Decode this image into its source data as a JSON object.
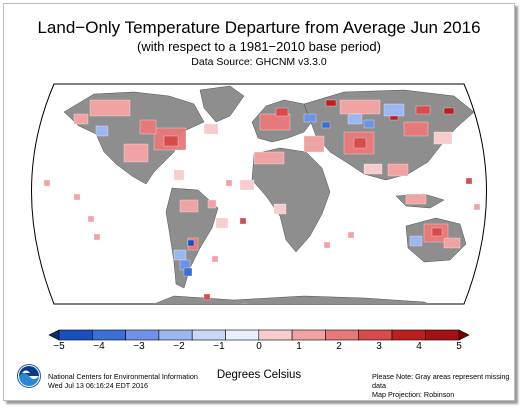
{
  "header": {
    "title": "Land−Only Temperature Departure from Average Jun 2016",
    "subtitle": "(with respect to a 1981−2010 base period)",
    "source": "Data Source: GHCNM v3.3.0"
  },
  "colors": {
    "land_missing": "#8e8e8e",
    "ocean": "#ffffff",
    "scale": [
      "#08306b",
      "#1a4fbf",
      "#3a6fd6",
      "#6e93e6",
      "#9db6f0",
      "#c9d7f6",
      "#f6cccc",
      "#efa3a3",
      "#e57a7a",
      "#d84b4b",
      "#bf1e1e",
      "#7a0000"
    ]
  },
  "legend": {
    "ticks": [
      "−5",
      "−4",
      "−3",
      "−2",
      "−1",
      "0",
      "1",
      "2",
      "3",
      "4",
      "5"
    ],
    "unit_label": "Degrees Celsius"
  },
  "footer": {
    "org_line1": "National Centers for Environmental Information",
    "org_line2": "Wed Jul 13 06:16:24 EDT 2016",
    "note_line1": "Please Note: Gray areas represent missing data",
    "note_line2": "Map Projection: Robinson"
  },
  "map_data": {
    "projection": "Robinson",
    "period": "Jun 2016",
    "warm_regions": [
      "eastern North America",
      "western Europe",
      "north Africa",
      "Middle East",
      "Indonesia",
      "northern Russia",
      "northern Australia"
    ],
    "cool_regions": [
      "southern South America",
      "central Russia",
      "Mongolia",
      "northwest Pacific coast"
    ]
  }
}
